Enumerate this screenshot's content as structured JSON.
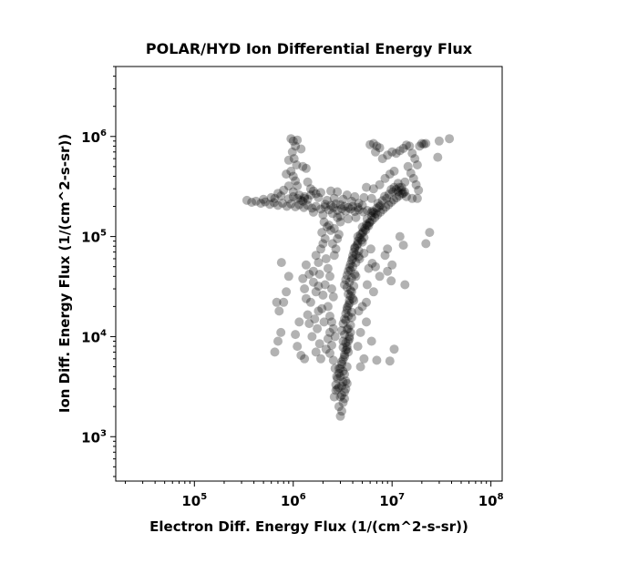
{
  "chart_data": {
    "type": "scatter",
    "title": "POLAR/HYD  Ion Differential Energy Flux",
    "xlabel": "Electron Diff. Energy Flux (1/(cm^2-s-sr))",
    "ylabel": "Ion Diff. Energy Flux (1/(cm^2-s-sr))",
    "xscale": "log",
    "yscale": "log",
    "xlim": [
      16000,
      130000000
    ],
    "ylim": [
      360,
      5000000
    ],
    "x_ticks": [
      {
        "base": "10",
        "exp": "5",
        "value": 100000
      },
      {
        "base": "10",
        "exp": "6",
        "value": 1000000
      },
      {
        "base": "10",
        "exp": "7",
        "value": 10000000
      },
      {
        "base": "10",
        "exp": "8",
        "value": 100000000
      }
    ],
    "y_ticks": [
      {
        "base": "10",
        "exp": "3",
        "value": 1000
      },
      {
        "base": "10",
        "exp": "4",
        "value": 10000
      },
      {
        "base": "10",
        "exp": "5",
        "value": 100000
      },
      {
        "base": "10",
        "exp": "6",
        "value": 1000000
      }
    ],
    "grid": false,
    "marker_color": "#000000",
    "marker_opacity": 0.3,
    "points": [
      [
        3000000,
        1600
      ],
      [
        3100000,
        1800
      ],
      [
        2900000,
        2000
      ],
      [
        3200000,
        2200
      ],
      [
        3000000,
        2500
      ],
      [
        3300000,
        2800
      ],
      [
        3100000,
        3200
      ],
      [
        2800000,
        3000
      ],
      [
        3400000,
        3600
      ],
      [
        3000000,
        4000
      ],
      [
        3200000,
        4500
      ],
      [
        3500000,
        5000
      ],
      [
        3100000,
        5600
      ],
      [
        3300000,
        6300
      ],
      [
        3600000,
        7000
      ],
      [
        3200000,
        7800
      ],
      [
        3400000,
        8700
      ],
      [
        3700000,
        9500
      ],
      [
        3300000,
        10500
      ],
      [
        3500000,
        11800
      ],
      [
        3800000,
        13000
      ],
      [
        3400000,
        14500
      ],
      [
        3600000,
        16000
      ],
      [
        3900000,
        17500
      ],
      [
        3500000,
        19500
      ],
      [
        3700000,
        21500
      ],
      [
        4000000,
        24000
      ],
      [
        3600000,
        26500
      ],
      [
        3800000,
        29000
      ],
      [
        4100000,
        32000
      ],
      [
        3700000,
        35000
      ],
      [
        3900000,
        38500
      ],
      [
        4200000,
        42000
      ],
      [
        3800000,
        46000
      ],
      [
        4000000,
        50000
      ],
      [
        4300000,
        55000
      ],
      [
        4000000,
        60000
      ],
      [
        4300000,
        66000
      ],
      [
        4600000,
        72000
      ],
      [
        4200000,
        78000
      ],
      [
        4500000,
        85000
      ],
      [
        4900000,
        92000
      ],
      [
        4500000,
        100000
      ],
      [
        5000000,
        108000
      ],
      [
        5400000,
        116000
      ],
      [
        5000000,
        124000
      ],
      [
        5500000,
        132000
      ],
      [
        6000000,
        140000
      ],
      [
        5600000,
        150000
      ],
      [
        6200000,
        160000
      ],
      [
        6800000,
        170000
      ],
      [
        6300000,
        180000
      ],
      [
        7000000,
        192000
      ],
      [
        7600000,
        205000
      ],
      [
        7200000,
        215000
      ],
      [
        8000000,
        228000
      ],
      [
        8800000,
        240000
      ],
      [
        8400000,
        252000
      ],
      [
        9300000,
        265000
      ],
      [
        10200000,
        280000
      ],
      [
        11000000,
        295000
      ],
      [
        11800000,
        310000
      ],
      [
        12500000,
        290000
      ],
      [
        13000000,
        270000
      ],
      [
        3200000,
        3500
      ],
      [
        3300000,
        4200
      ],
      [
        2900000,
        4800
      ],
      [
        3500000,
        7500
      ],
      [
        3600000,
        12000
      ],
      [
        3200000,
        9000
      ],
      [
        3900000,
        15500
      ],
      [
        4100000,
        23000
      ],
      [
        3500000,
        31000
      ],
      [
        4300000,
        40000
      ],
      [
        4600000,
        63000
      ],
      [
        5200000,
        98000
      ],
      [
        5800000,
        128000
      ],
      [
        6500000,
        175000
      ],
      [
        7400000,
        198000
      ],
      [
        340000,
        230000
      ],
      [
        380000,
        220000
      ],
      [
        420000,
        225000
      ],
      [
        470000,
        215000
      ],
      [
        520000,
        222000
      ],
      [
        580000,
        210000
      ],
      [
        640000,
        218000
      ],
      [
        700000,
        205000
      ],
      [
        780000,
        215000
      ],
      [
        860000,
        200000
      ],
      [
        950000,
        212000
      ],
      [
        1050000,
        198000
      ],
      [
        1150000,
        208000
      ],
      [
        1280000,
        195000
      ],
      [
        1400000,
        205000
      ],
      [
        1550000,
        192000
      ],
      [
        1700000,
        200000
      ],
      [
        1900000,
        188000
      ],
      [
        2100000,
        198000
      ],
      [
        2300000,
        185000
      ],
      [
        2550000,
        195000
      ],
      [
        2800000,
        182000
      ],
      [
        3100000,
        190000
      ],
      [
        3400000,
        180000
      ],
      [
        3800000,
        188000
      ],
      [
        4200000,
        178000
      ],
      [
        4600000,
        185000
      ],
      [
        5100000,
        176000
      ],
      [
        5600000,
        182000
      ],
      [
        6200000,
        174000
      ],
      [
        500000,
        235000
      ],
      [
        650000,
        240000
      ],
      [
        900000,
        238000
      ],
      [
        1200000,
        230000
      ],
      [
        1600000,
        175000
      ],
      [
        2000000,
        165000
      ],
      [
        2500000,
        170000
      ],
      [
        3000000,
        160000
      ],
      [
        3600000,
        150000
      ],
      [
        4300000,
        155000
      ],
      [
        1300000,
        250000
      ],
      [
        1500000,
        260000
      ],
      [
        1800000,
        245000
      ],
      [
        2200000,
        230000
      ],
      [
        2600000,
        240000
      ],
      [
        3200000,
        235000
      ],
      [
        3900000,
        225000
      ],
      [
        4600000,
        215000
      ],
      [
        950000,
        950000
      ],
      [
        1000000,
        900000
      ],
      [
        1100000,
        920000
      ],
      [
        1050000,
        800000
      ],
      [
        980000,
        700000
      ],
      [
        1020000,
        600000
      ],
      [
        1080000,
        520000
      ],
      [
        950000,
        450000
      ],
      [
        1000000,
        400000
      ],
      [
        1050000,
        360000
      ],
      [
        1100000,
        320000
      ],
      [
        1000000,
        280000
      ],
      [
        1150000,
        260000
      ],
      [
        900000,
        580000
      ],
      [
        1200000,
        750000
      ],
      [
        850000,
        420000
      ],
      [
        1250000,
        500000
      ],
      [
        1350000,
        480000
      ],
      [
        1400000,
        350000
      ],
      [
        1500000,
        300000
      ],
      [
        1300000,
        240000
      ],
      [
        1600000,
        35000
      ],
      [
        1700000,
        28000
      ],
      [
        1500000,
        22000
      ],
      [
        1800000,
        18000
      ],
      [
        1650000,
        15000
      ],
      [
        1750000,
        12000
      ],
      [
        1550000,
        10000
      ],
      [
        1850000,
        8500
      ],
      [
        1700000,
        7000
      ],
      [
        1900000,
        6000
      ],
      [
        1600000,
        45000
      ],
      [
        1800000,
        55000
      ],
      [
        1700000,
        65000
      ],
      [
        1900000,
        75000
      ],
      [
        2000000,
        85000
      ],
      [
        2100000,
        95000
      ],
      [
        1950000,
        110000
      ],
      [
        2200000,
        125000
      ],
      [
        2050000,
        140000
      ],
      [
        2300000,
        130000
      ],
      [
        2400000,
        115000
      ],
      [
        2150000,
        60000
      ],
      [
        2250000,
        48000
      ],
      [
        2350000,
        40000
      ],
      [
        2450000,
        30000
      ],
      [
        2550000,
        25000
      ],
      [
        2250000,
        20000
      ],
      [
        2350000,
        16000
      ],
      [
        2450000,
        14000
      ],
      [
        2550000,
        12000
      ],
      [
        2650000,
        10000
      ],
      [
        2450000,
        8200
      ],
      [
        2350000,
        6800
      ],
      [
        2550000,
        5800
      ],
      [
        2650000,
        4800
      ],
      [
        2750000,
        4000
      ],
      [
        2700000,
        3300
      ],
      [
        1400000,
        16500
      ],
      [
        1450000,
        13500
      ],
      [
        1350000,
        24000
      ],
      [
        1300000,
        30000
      ],
      [
        1450000,
        42000
      ],
      [
        1350000,
        52000
      ],
      [
        1250000,
        38000
      ],
      [
        2100000,
        33000
      ],
      [
        2000000,
        26000
      ],
      [
        1950000,
        19000
      ],
      [
        2050000,
        14000
      ],
      [
        2250000,
        9500
      ],
      [
        2150000,
        7500
      ],
      [
        2350000,
        11000
      ],
      [
        1800000,
        32000
      ],
      [
        1850000,
        42000
      ],
      [
        2600000,
        65000
      ],
      [
        2700000,
        75000
      ],
      [
        2500000,
        85000
      ],
      [
        2800000,
        95000
      ],
      [
        2900000,
        105000
      ],
      [
        2600000,
        120000
      ],
      [
        3000000,
        140000
      ],
      [
        2800000,
        155000
      ],
      [
        700000,
        9000
      ],
      [
        650000,
        7000
      ],
      [
        750000,
        11000
      ],
      [
        800000,
        22000
      ],
      [
        720000,
        18000
      ],
      [
        850000,
        28000
      ],
      [
        900000,
        40000
      ],
      [
        760000,
        55000
      ],
      [
        680000,
        22000
      ],
      [
        1100000,
        8000
      ],
      [
        1200000,
        6500
      ],
      [
        1300000,
        6000
      ],
      [
        1050000,
        10500
      ],
      [
        1150000,
        14000
      ],
      [
        6000000,
        830000
      ],
      [
        6500000,
        850000
      ],
      [
        7000000,
        800000
      ],
      [
        7500000,
        770000
      ],
      [
        6800000,
        700000
      ],
      [
        8000000,
        600000
      ],
      [
        9000000,
        650000
      ],
      [
        10000000,
        700000
      ],
      [
        11000000,
        680000
      ],
      [
        12000000,
        720000
      ],
      [
        13000000,
        760000
      ],
      [
        14000000,
        820000
      ],
      [
        15000000,
        800000
      ],
      [
        16000000,
        680000
      ],
      [
        17000000,
        600000
      ],
      [
        18000000,
        520000
      ],
      [
        19000000,
        800000
      ],
      [
        20000000,
        850000
      ],
      [
        21000000,
        840000
      ],
      [
        22000000,
        850000
      ],
      [
        14500000,
        500000
      ],
      [
        15500000,
        430000
      ],
      [
        16500000,
        380000
      ],
      [
        17500000,
        330000
      ],
      [
        18500000,
        290000
      ],
      [
        13500000,
        350000
      ],
      [
        12500000,
        310000
      ],
      [
        11500000,
        280000
      ],
      [
        10500000,
        450000
      ],
      [
        9500000,
        420000
      ],
      [
        8500000,
        380000
      ],
      [
        7500000,
        330000
      ],
      [
        6500000,
        300000
      ],
      [
        5500000,
        310000
      ],
      [
        14000000,
        250000
      ],
      [
        16000000,
        240000
      ],
      [
        18000000,
        240000
      ],
      [
        11500000,
        340000
      ],
      [
        10500000,
        310000
      ],
      [
        9800000,
        295000
      ],
      [
        30000000,
        900000
      ],
      [
        38000000,
        950000
      ],
      [
        29000000,
        620000
      ],
      [
        24000000,
        110000
      ],
      [
        22000000,
        85000
      ],
      [
        13000000,
        82000
      ],
      [
        12000000,
        100000
      ],
      [
        9000000,
        75000
      ],
      [
        8500000,
        65000
      ],
      [
        10000000,
        52000
      ],
      [
        7500000,
        40000
      ],
      [
        9000000,
        45000
      ],
      [
        13500000,
        33000
      ],
      [
        9800000,
        36000
      ],
      [
        6500000,
        28000
      ],
      [
        5500000,
        22000
      ],
      [
        6200000,
        9000
      ],
      [
        7000000,
        5800
      ],
      [
        9500000,
        5700
      ],
      [
        10500000,
        7500
      ],
      [
        4800000,
        5000
      ],
      [
        5200000,
        6000
      ],
      [
        4500000,
        8000
      ],
      [
        5500000,
        14000
      ],
      [
        4800000,
        11000
      ],
      [
        5000000,
        20000
      ],
      [
        4600000,
        18000
      ],
      [
        5600000,
        33000
      ],
      [
        6300000,
        54000
      ],
      [
        5800000,
        48000
      ],
      [
        4700000,
        60000
      ],
      [
        5200000,
        68000
      ],
      [
        5000000,
        88000
      ],
      [
        6100000,
        75000
      ],
      [
        6800000,
        50000
      ],
      [
        900000,
        320000
      ],
      [
        800000,
        290000
      ],
      [
        700000,
        270000
      ],
      [
        600000,
        245000
      ],
      [
        750000,
        255000
      ],
      [
        1000000,
        250000
      ],
      [
        1100000,
        240000
      ],
      [
        1250000,
        225000
      ],
      [
        1400000,
        235000
      ],
      [
        1700000,
        268000
      ],
      [
        1900000,
        275000
      ],
      [
        1600000,
        285000
      ],
      [
        2100000,
        210000
      ],
      [
        2400000,
        205000
      ],
      [
        2700000,
        212000
      ],
      [
        3000000,
        208000
      ],
      [
        3300000,
        200000
      ],
      [
        3600000,
        195000
      ],
      [
        4000000,
        200000
      ],
      [
        4500000,
        195000
      ],
      [
        5000000,
        205000
      ],
      [
        2400000,
        285000
      ],
      [
        2800000,
        280000
      ],
      [
        3500000,
        260000
      ],
      [
        4200000,
        250000
      ],
      [
        5200000,
        245000
      ],
      [
        6200000,
        240000
      ],
      [
        2600000,
        2500
      ],
      [
        2700000,
        2900
      ],
      [
        2900000,
        3100
      ],
      [
        3100000,
        2600
      ],
      [
        3300000,
        2400
      ],
      [
        3400000,
        3000
      ],
      [
        3500000,
        3400
      ],
      [
        2800000,
        3800
      ],
      [
        2900000,
        4300
      ],
      [
        3000000,
        4800
      ],
      [
        3100000,
        5300
      ],
      [
        3200000,
        5900
      ],
      [
        3300000,
        6600
      ],
      [
        3400000,
        7300
      ],
      [
        3500000,
        8000
      ],
      [
        3600000,
        9000
      ],
      [
        3700000,
        10000
      ],
      [
        3800000,
        11000
      ],
      [
        3100000,
        11500
      ],
      [
        3200000,
        13500
      ],
      [
        3300000,
        15000
      ],
      [
        3400000,
        17000
      ],
      [
        3500000,
        18500
      ],
      [
        3600000,
        20500
      ],
      [
        3700000,
        23000
      ],
      [
        3800000,
        25500
      ],
      [
        3900000,
        28000
      ],
      [
        3300000,
        33000
      ],
      [
        3400000,
        37000
      ],
      [
        3500000,
        41000
      ],
      [
        3600000,
        45000
      ],
      [
        3700000,
        49000
      ],
      [
        3800000,
        53000
      ],
      [
        3900000,
        58000
      ],
      [
        4000000,
        64000
      ],
      [
        4100000,
        70000
      ],
      [
        4200000,
        76000
      ],
      [
        4400000,
        82000
      ],
      [
        4500000,
        90000
      ],
      [
        4700000,
        97000
      ],
      [
        4800000,
        105000
      ],
      [
        5100000,
        112000
      ],
      [
        5300000,
        120000
      ],
      [
        5600000,
        128000
      ],
      [
        5900000,
        137000
      ],
      [
        6300000,
        146000
      ],
      [
        6700000,
        155000
      ],
      [
        7100000,
        165000
      ],
      [
        7600000,
        175000
      ],
      [
        8100000,
        186000
      ],
      [
        8600000,
        197000
      ],
      [
        9200000,
        208000
      ],
      [
        9800000,
        220000
      ],
      [
        10400000,
        232000
      ],
      [
        11100000,
        244000
      ],
      [
        11800000,
        256000
      ],
      [
        12600000,
        268000
      ],
      [
        13400000,
        280000
      ]
    ]
  }
}
